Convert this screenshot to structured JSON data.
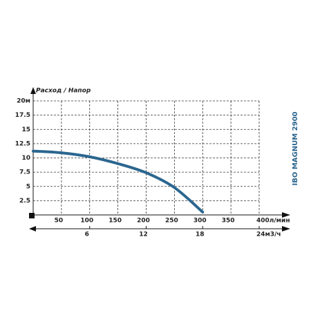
{
  "chart_data": {
    "type": "line",
    "title": "Расход / Напор",
    "side_label": "IBO MAGNUM 2900",
    "x": [
      0,
      50,
      100,
      150,
      200,
      250,
      300
    ],
    "series": [
      {
        "name": "IBO MAGNUM 2900",
        "color": "#2b6690",
        "values": [
          11.2,
          10.9,
          10.2,
          9.0,
          7.4,
          4.8,
          0.5
        ]
      }
    ],
    "xlim": [
      0,
      400
    ],
    "xticks": [
      50,
      100,
      150,
      200,
      250,
      300,
      350,
      {
        "value": 400,
        "label": "400л/мин"
      }
    ],
    "ylim": [
      0,
      20
    ],
    "yticks": [
      2.5,
      5,
      7.5,
      10,
      12.5,
      15,
      17.5,
      {
        "value": 20,
        "label": "20м"
      }
    ],
    "x2lim": [
      0,
      24
    ],
    "x2ticks": [
      6,
      12,
      18,
      {
        "value": 24,
        "label": "24м3/ч"
      }
    ],
    "grid": true
  }
}
